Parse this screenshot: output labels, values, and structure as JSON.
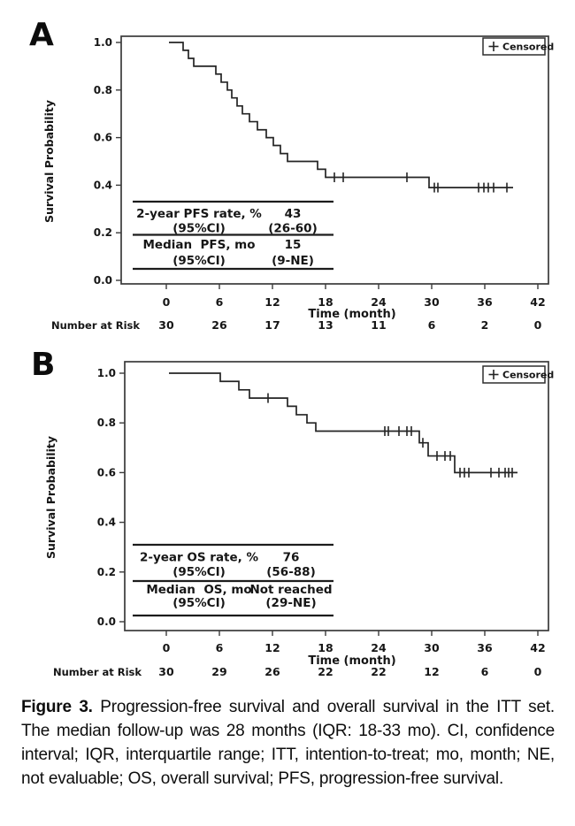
{
  "figure": {
    "panels": [
      {
        "letter": "A"
      },
      {
        "letter": "B"
      }
    ],
    "caption": {
      "label": "Figure 3.",
      "text": " Progression-free survival and overall survival in the ITT set. The median follow-up was 28 months (IQR: 18-33 mo). CI, confidence interval; IQR, interquartile range; ITT, intention-to-treat; mo, month; NE, not evaluable; OS, overall survival; PFS, progression-free survival."
    }
  },
  "chart_data": [
    {
      "type": "line",
      "subtype": "kaplan_meier_step",
      "panel": "A",
      "endpoint": "PFS",
      "xlabel": "Time (month)",
      "ylabel": "Survival Probability",
      "x_ticks": [
        0,
        6,
        12,
        18,
        24,
        30,
        36,
        42
      ],
      "y_tick_labels": [
        "1.0",
        "0.8",
        "0.6",
        "0.4",
        "0.2",
        "0.0"
      ],
      "y_tick_values": [
        1.0,
        0.8,
        0.6,
        0.4,
        0.2,
        0.0
      ],
      "xlim": [
        -3,
        44
      ],
      "ylim": [
        -0.05,
        1.02
      ],
      "grid": false,
      "legend": {
        "marker": "+",
        "label": "Censored",
        "position": "top-right-inside"
      },
      "curve": {
        "start": [
          0.3,
          1.0
        ],
        "drops": [
          [
            1.9,
            0.967
          ],
          [
            2.5,
            0.933
          ],
          [
            3.1,
            0.9
          ],
          [
            5.6,
            0.867
          ],
          [
            6.2,
            0.833
          ],
          [
            6.9,
            0.8
          ],
          [
            7.4,
            0.767
          ],
          [
            8.0,
            0.733
          ],
          [
            8.6,
            0.7
          ],
          [
            9.4,
            0.667
          ],
          [
            10.3,
            0.633
          ],
          [
            11.3,
            0.6
          ],
          [
            12.1,
            0.567
          ],
          [
            12.9,
            0.533
          ],
          [
            13.7,
            0.5
          ],
          [
            17.1,
            0.467
          ],
          [
            18.0,
            0.433
          ],
          [
            29.7,
            0.39
          ]
        ],
        "end": [
          39.2,
          0.39
        ]
      },
      "censor_marks": [
        [
          19.0,
          0.433
        ],
        [
          20.0,
          0.433
        ],
        [
          27.2,
          0.433
        ],
        [
          30.3,
          0.39
        ],
        [
          30.7,
          0.39
        ],
        [
          35.3,
          0.39
        ],
        [
          35.9,
          0.39
        ],
        [
          36.4,
          0.39
        ],
        [
          37.0,
          0.39
        ],
        [
          38.5,
          0.39
        ]
      ],
      "number_at_risk": {
        "label": "Number at Risk",
        "times": [
          0,
          6,
          12,
          18,
          24,
          30,
          36,
          42
        ],
        "values": [
          "30",
          "26",
          "17",
          "13",
          "11",
          "6",
          "2",
          "0"
        ]
      },
      "inset_table": {
        "rows": [
          {
            "label": "2-year PFS rate, %",
            "value": "43"
          },
          {
            "label": "(95%CI)",
            "value": "(26-60)"
          },
          {
            "label": "Median  PFS, mo",
            "value": "15"
          },
          {
            "label": "(95%CI)",
            "value": "(9-NE)"
          }
        ]
      }
    },
    {
      "type": "line",
      "subtype": "kaplan_meier_step",
      "panel": "B",
      "endpoint": "OS",
      "xlabel": "Time (month)",
      "ylabel": "Survival Probability",
      "x_ticks": [
        0,
        6,
        12,
        18,
        24,
        30,
        36,
        42
      ],
      "y_tick_labels": [
        "1.0",
        "0.8",
        "0.6",
        "0.4",
        "0.2",
        "0.0"
      ],
      "y_tick_values": [
        1.0,
        0.8,
        0.6,
        0.4,
        0.2,
        0.0
      ],
      "xlim": [
        -3,
        44
      ],
      "ylim": [
        -0.05,
        1.02
      ],
      "grid": false,
      "legend": {
        "marker": "+",
        "label": "Censored",
        "position": "top-right-inside"
      },
      "curve": {
        "start": [
          0.3,
          1.0
        ],
        "drops": [
          [
            6.1,
            0.967
          ],
          [
            8.2,
            0.933
          ],
          [
            9.4,
            0.9
          ],
          [
            13.7,
            0.867
          ],
          [
            14.7,
            0.833
          ],
          [
            15.9,
            0.8
          ],
          [
            16.9,
            0.767
          ],
          [
            28.6,
            0.72
          ],
          [
            29.6,
            0.667
          ],
          [
            32.6,
            0.6
          ]
        ],
        "end": [
          39.7,
          0.6
        ]
      },
      "censor_marks": [
        [
          11.5,
          0.9
        ],
        [
          24.7,
          0.767
        ],
        [
          25.1,
          0.767
        ],
        [
          26.3,
          0.767
        ],
        [
          27.2,
          0.767
        ],
        [
          27.7,
          0.767
        ],
        [
          29.0,
          0.72
        ],
        [
          30.6,
          0.667
        ],
        [
          31.5,
          0.667
        ],
        [
          32.1,
          0.667
        ],
        [
          33.2,
          0.6
        ],
        [
          33.7,
          0.6
        ],
        [
          34.2,
          0.6
        ],
        [
          36.7,
          0.6
        ],
        [
          37.6,
          0.6
        ],
        [
          38.3,
          0.6
        ],
        [
          38.7,
          0.6
        ],
        [
          39.1,
          0.6
        ]
      ],
      "number_at_risk": {
        "label": "Number at Risk",
        "times": [
          0,
          6,
          12,
          18,
          24,
          30,
          36,
          42
        ],
        "values": [
          "30",
          "29",
          "26",
          "22",
          "22",
          "12",
          "6",
          "0"
        ]
      },
      "inset_table": {
        "rows": [
          {
            "label": "2-year OS rate, %",
            "value": "76"
          },
          {
            "label": "(95%CI)",
            "value": "(56-88)"
          },
          {
            "label": "Median  OS, mo",
            "value": "Not reached"
          },
          {
            "label": "(95%CI)",
            "value": "(29-NE)"
          }
        ]
      }
    }
  ]
}
